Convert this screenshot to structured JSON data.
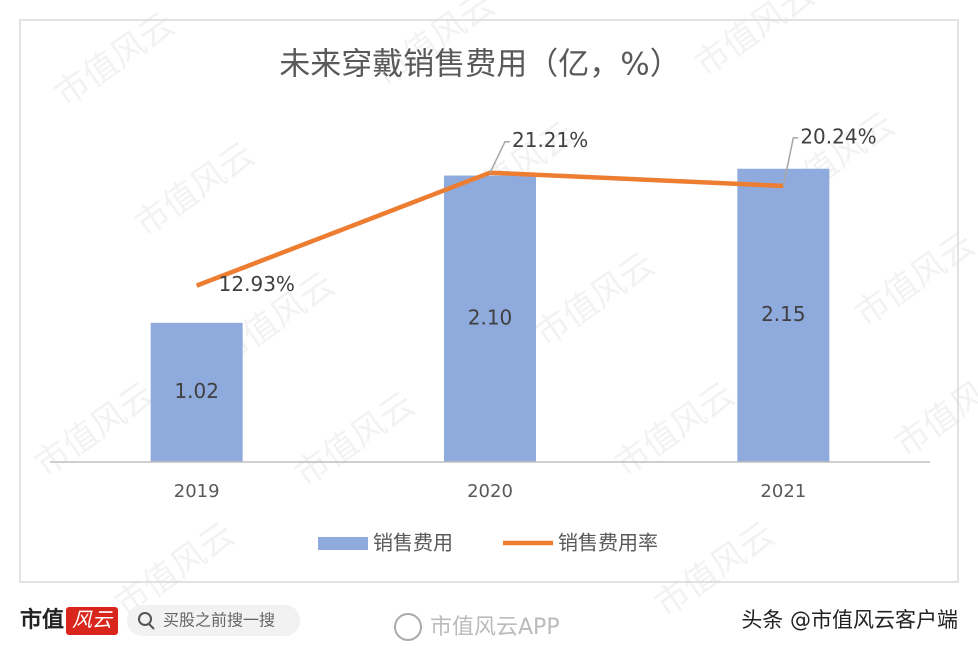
{
  "chart_data": {
    "type": "combo",
    "title": "未来穿戴销售费用（亿，%）",
    "categories": [
      "2019",
      "2020",
      "2021"
    ],
    "series": [
      {
        "name": "销售费用",
        "type": "bar",
        "color": "#8faadc",
        "values": [
          1.02,
          2.1,
          2.15
        ],
        "value_labels": [
          "1.02",
          "2.10",
          "2.15"
        ]
      },
      {
        "name": "销售费用率",
        "type": "line",
        "axis": "y2",
        "color": "#ed7d31",
        "values": [
          12.93,
          21.21,
          20.24
        ],
        "value_labels": [
          "12.93%",
          "21.21%",
          "20.24%"
        ]
      }
    ],
    "ylim": [
      0,
      2.5
    ],
    "y2lim": [
      0,
      25
    ],
    "legend": "bottom"
  },
  "watermark": "市值风云",
  "footer": {
    "logo": "市值",
    "logo_badge": "风云",
    "search": "买股之前搜一搜",
    "app": "市值风云APP",
    "source": "头条 @市值风云客户端"
  }
}
